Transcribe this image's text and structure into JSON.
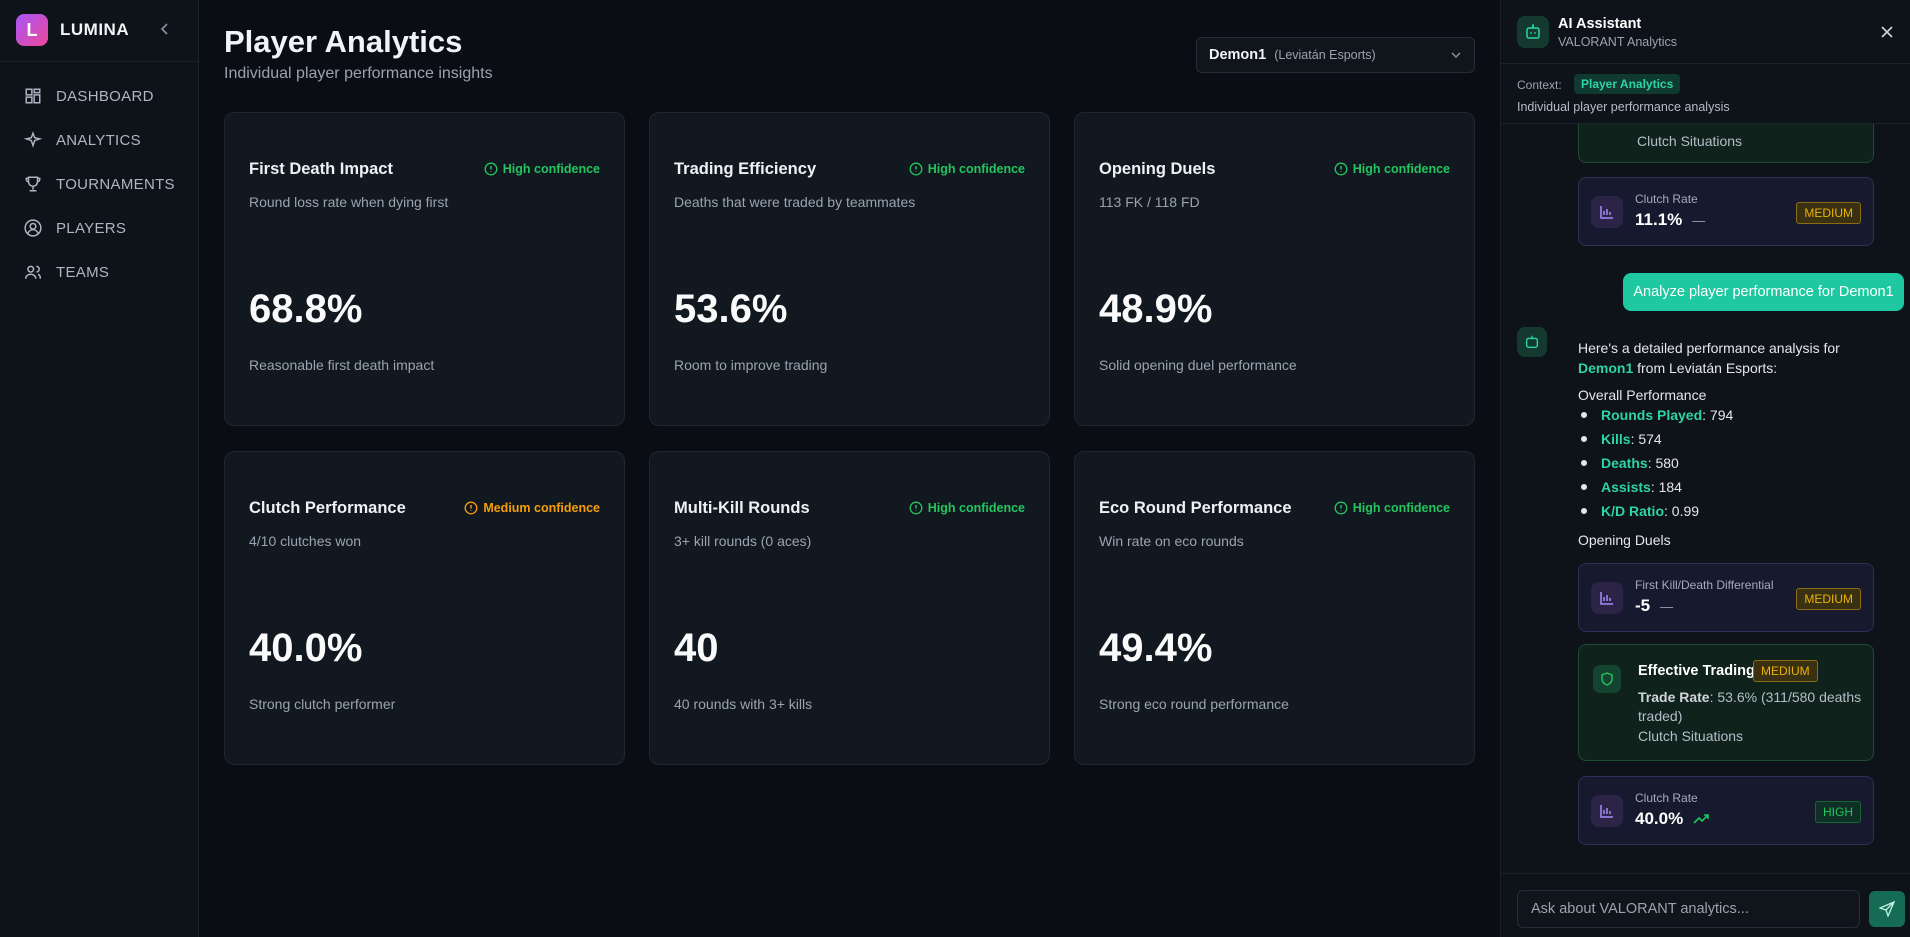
{
  "sidebar": {
    "brand_initial": "L",
    "brand": "LUMINA",
    "nav": [
      "DASHBOARD",
      "ANALYTICS",
      "TOURNAMENTS",
      "PLAYERS",
      "TEAMS"
    ]
  },
  "header": {
    "title": "Player Analytics",
    "subtitle": "Individual player performance insights"
  },
  "player_select": {
    "player": "Demon1",
    "team": "(Leviatán Esports)"
  },
  "cards": [
    {
      "title": "First Death Impact",
      "confidence": "High confidence",
      "confidence_color": "#22c55e",
      "description": "Round loss rate when dying first",
      "value": "68.8%",
      "note": "Reasonable first death impact"
    },
    {
      "title": "Trading Efficiency",
      "confidence": "High confidence",
      "confidence_color": "#22c55e",
      "description": "Deaths that were traded by teammates",
      "value": "53.6%",
      "note": "Room to improve trading"
    },
    {
      "title": "Opening Duels",
      "confidence": "High confidence",
      "confidence_color": "#22c55e",
      "description": "113 FK / 118 FD",
      "value": "48.9%",
      "note": "Solid opening duel performance"
    },
    {
      "title": "Clutch Performance",
      "confidence": "Medium confidence",
      "confidence_color": "#f59e0b",
      "description": "4/10 clutches won",
      "value": "40.0%",
      "note": "Strong clutch performer"
    },
    {
      "title": "Multi-Kill Rounds",
      "confidence": "High confidence",
      "confidence_color": "#22c55e",
      "description": "3+ kill rounds (0 aces)",
      "value": "40",
      "note": "40 rounds with 3+ kills"
    },
    {
      "title": "Eco Round Performance",
      "confidence": "High confidence",
      "confidence_color": "#22c55e",
      "description": "Win rate on eco rounds",
      "value": "49.4%",
      "note": "Strong eco round performance"
    }
  ],
  "assistant": {
    "title": "AI Assistant",
    "subtitle": "VALORANT Analytics",
    "context_label": "Context:",
    "context_tag": "Player Analytics",
    "context_description": "Individual player performance analysis",
    "partial_card_text": "Clutch Situations",
    "metric_1": {
      "label": "Clutch Rate",
      "value": "11.1%",
      "trend": "—",
      "badge": "MEDIUM"
    },
    "user_message": "Analyze player performance for Demon1",
    "reply": {
      "intro": "Here's a detailed performance analysis for",
      "player": "Demon1",
      "intro_end": "from Leviatán Esports:",
      "section_1": "Overall Performance",
      "stats": [
        {
          "label": "Rounds Played",
          "value": ": 794"
        },
        {
          "label": "Kills",
          "value": ": 574"
        },
        {
          "label": "Deaths",
          "value": ": 580"
        },
        {
          "label": "Assists",
          "value": ": 184"
        },
        {
          "label": "K/D Ratio",
          "value": ": 0.99"
        }
      ],
      "section_2": "Opening Duels",
      "metric_2": {
        "label": "First Kill/Death Differential",
        "value": "-5",
        "trend": "—",
        "badge": "MEDIUM"
      },
      "insight": {
        "title": "Effective Trading",
        "badge": "MEDIUM",
        "label": "Trade Rate",
        "text": ": 53.6% (311/580 deaths traded)",
        "extra": "Clutch Situations"
      },
      "metric_3": {
        "label": "Clutch Rate",
        "value": "40.0%",
        "badge": "HIGH"
      }
    },
    "input_placeholder": "Ask about VALORANT analytics..."
  }
}
